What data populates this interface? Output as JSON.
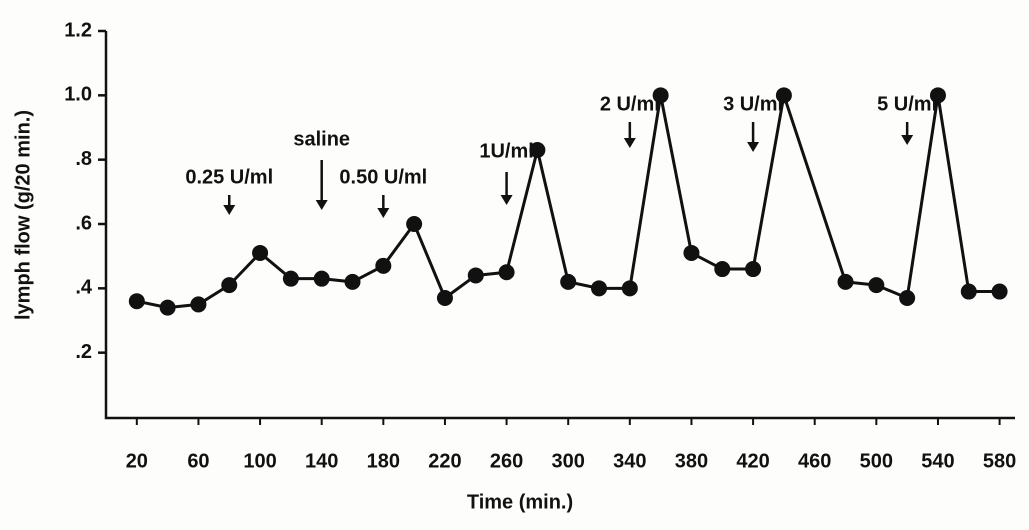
{
  "chart_data": {
    "type": "line",
    "x_label": "Time (min.)",
    "y_label": "lymph flow (g/20 min.)",
    "x": [
      20,
      40,
      60,
      80,
      100,
      120,
      140,
      160,
      180,
      200,
      220,
      240,
      260,
      280,
      300,
      320,
      340,
      360,
      380,
      400,
      420,
      440,
      480,
      500,
      520,
      540,
      560,
      580
    ],
    "series": [
      {
        "color": "#111111",
        "values": [
          0.36,
          0.34,
          0.35,
          0.41,
          0.51,
          0.43,
          0.43,
          0.42,
          0.47,
          0.6,
          0.37,
          0.44,
          0.45,
          0.83,
          0.42,
          0.4,
          0.4,
          1.0,
          0.51,
          0.46,
          0.46,
          1.0,
          0.42,
          0.41,
          0.37,
          1.0,
          0.39,
          0.39
        ]
      }
    ],
    "xlim": [
      0,
      590
    ],
    "xticks": [
      20,
      60,
      100,
      140,
      180,
      220,
      260,
      300,
      340,
      380,
      420,
      460,
      500,
      540,
      580
    ],
    "ylim": [
      0,
      1.2
    ],
    "yticks": [
      {
        "value": 0.2,
        "label": ".2"
      },
      {
        "value": 0.4,
        "label": ".4"
      },
      {
        "value": 0.6,
        "label": ".6"
      },
      {
        "value": 0.8,
        "label": ".8"
      },
      {
        "value": 1.0,
        "label": "1.0"
      },
      {
        "value": 1.2,
        "label": "1.2"
      }
    ],
    "annotations": [
      {
        "text": "0.25 U/ml",
        "x": 80
      },
      {
        "text": "saline",
        "x": 140
      },
      {
        "text": "0.50 U/ml",
        "x": 180
      },
      {
        "text": "1U/ml",
        "x": 260
      },
      {
        "text": "2 U/ml",
        "x": 340
      },
      {
        "text": "3 U/ml",
        "x": 420
      },
      {
        "text": "5 U/ml",
        "x": 520
      }
    ]
  }
}
